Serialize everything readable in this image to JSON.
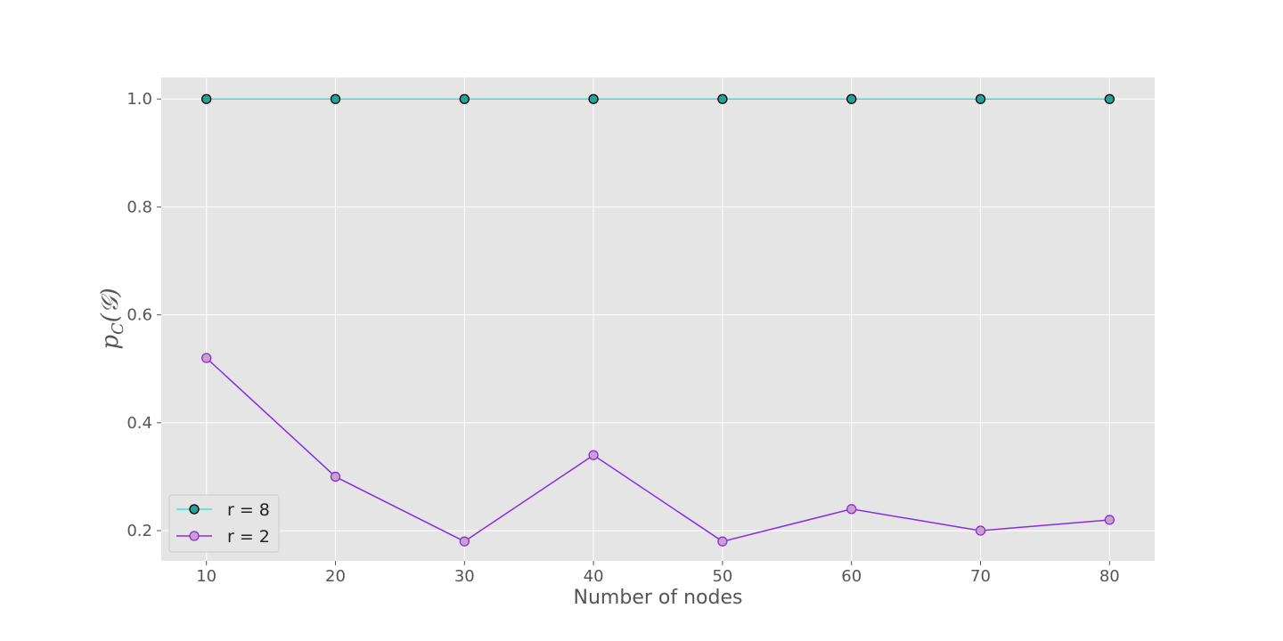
{
  "chart_data": {
    "type": "line",
    "title": "",
    "xlabel": "Number of nodes",
    "ylabel": {
      "base": "p",
      "subscript": "C",
      "argument": "(𝒢)"
    },
    "x": [
      10,
      20,
      30,
      40,
      50,
      60,
      70,
      80
    ],
    "xlim": [
      6.5,
      83.5
    ],
    "ylim": [
      0.144,
      1.04
    ],
    "x_ticks": [
      "10",
      "20",
      "30",
      "40",
      "50",
      "60",
      "70",
      "80"
    ],
    "y_ticks": [
      "0.2",
      "0.4",
      "0.6",
      "0.8",
      "1.0"
    ],
    "grid": true,
    "legend_position": "lower-left",
    "background": "#e5e5e5",
    "series": [
      {
        "name": "r = 8",
        "values": [
          1.0,
          1.0,
          1.0,
          1.0,
          1.0,
          1.0,
          1.0,
          1.0
        ],
        "line_color": "#40e0d0",
        "marker_fill": "#2aa198",
        "marker_edge": "#000000"
      },
      {
        "name": "r = 2",
        "values": [
          0.52,
          0.3,
          0.18,
          0.34,
          0.18,
          0.24,
          0.2,
          0.22
        ],
        "line_color": "#8a2be2",
        "marker_fill": "#c8a2c8",
        "marker_edge": "#8a2be2"
      }
    ]
  }
}
